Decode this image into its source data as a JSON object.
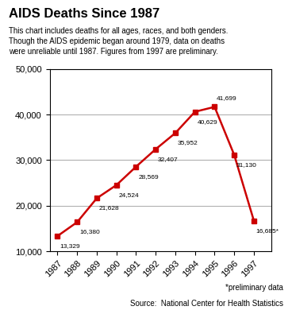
{
  "chart_data": {
    "type": "line",
    "title": "AIDS Deaths Since 1987",
    "subtitle": "This chart includes deaths for all ages, races, and both genders.\nThough the AIDS epidemic began around 1979, data on deaths\nwere unreliable until 1987. Figures from 1997 are preliminary.",
    "x": [
      1987,
      1988,
      1989,
      1990,
      1991,
      1992,
      1993,
      1994,
      1995,
      1996,
      1997
    ],
    "values": [
      13329,
      16380,
      21628,
      24524,
      28569,
      32407,
      35952,
      40629,
      41699,
      31130,
      16685
    ],
    "value_labels": [
      "13,329",
      "16,380",
      "21,628",
      "24,524",
      "28,569",
      "32,407",
      "35,952",
      "40,629",
      "41,699",
      "31,130",
      "16,685*"
    ],
    "data_labels": true,
    "color": "#cc0000",
    "marker": "square",
    "xlim": [
      1986.6,
      1997.9
    ],
    "xticks": [
      1987,
      1988,
      1989,
      1990,
      1991,
      1992,
      1993,
      1994,
      1995,
      1996,
      1997
    ],
    "ylim": [
      10000,
      50000
    ],
    "yticks": [
      {
        "value": 10000,
        "label": "10,000"
      },
      {
        "value": 20000,
        "label": "20,000"
      },
      {
        "value": 30000,
        "label": "30,000"
      },
      {
        "value": 40000,
        "label": "40,000"
      },
      {
        "value": 50000,
        "label": "50,000"
      }
    ],
    "grid": true,
    "annotations": [
      "*preliminary data",
      "Source:  National Center for Health Statistics"
    ]
  }
}
